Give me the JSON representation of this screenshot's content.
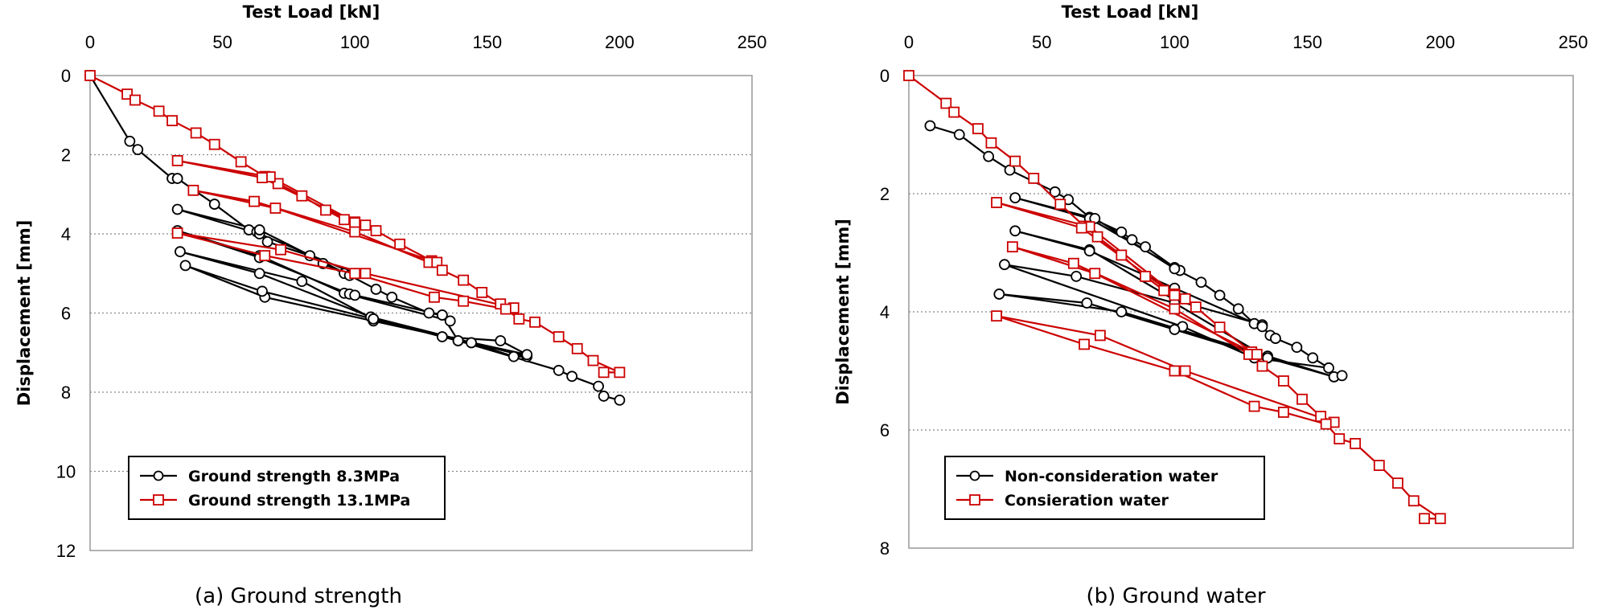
{
  "chart_data": [
    {
      "type": "line",
      "caption": "(a) Ground strength",
      "xlabel": "Test Load [kN]",
      "ylabel": "Displacement [mm]",
      "xlim": [
        0,
        250
      ],
      "ylim": [
        0,
        12
      ],
      "y_inverted": true,
      "xticks": [
        0,
        50,
        100,
        150,
        200,
        250
      ],
      "yticks": [
        0,
        2,
        4,
        6,
        8,
        10,
        12
      ],
      "grid": "horizontal dotted",
      "legend_position": "bottom-left",
      "series": [
        {
          "name": "Ground strength 8.3MPa",
          "color": "#000000",
          "marker": "circle",
          "points": [
            [
              0,
              0
            ],
            [
              15,
              1.66
            ],
            [
              18,
              1.87
            ],
            [
              31,
              2.6
            ],
            [
              33,
              2.6
            ],
            [
              47,
              3.25
            ],
            [
              60,
              3.9
            ],
            [
              63,
              3.95
            ],
            [
              67,
              4.2
            ],
            [
              83,
              4.55
            ],
            [
              88,
              4.75
            ],
            [
              96,
              5.0
            ],
            [
              100,
              5.0
            ],
            [
              64,
              4.0
            ],
            [
              33,
              3.38
            ],
            [
              64,
              3.9
            ],
            [
              98,
              5.05
            ],
            [
              108,
              5.4
            ],
            [
              114,
              5.6
            ],
            [
              128,
              6.0
            ],
            [
              133,
              6.05
            ],
            [
              136,
              6.2
            ],
            [
              96,
              5.5
            ],
            [
              64,
              4.55
            ],
            [
              33,
              3.92
            ],
            [
              64,
              4.6
            ],
            [
              98,
              5.52
            ],
            [
              100,
              5.55
            ],
            [
              133,
              6.05
            ],
            [
              139,
              6.7
            ],
            [
              144,
              6.75
            ],
            [
              160,
              7.1
            ],
            [
              165,
              7.1
            ],
            [
              106,
              6.1
            ],
            [
              64,
              5.0
            ],
            [
              34,
              4.45
            ],
            [
              80,
              5.2
            ],
            [
              107,
              6.15
            ],
            [
              133,
              6.6
            ],
            [
              155,
              6.7
            ],
            [
              165,
              7.05
            ],
            [
              107,
              6.2
            ],
            [
              66,
              5.6
            ],
            [
              36,
              4.8
            ],
            [
              65,
              5.45
            ],
            [
              107,
              6.15
            ],
            [
              139,
              6.7
            ],
            [
              177,
              7.45
            ],
            [
              182,
              7.6
            ],
            [
              192,
              7.85
            ],
            [
              194,
              8.1
            ],
            [
              200,
              8.2
            ]
          ]
        },
        {
          "name": "Ground strength 13.1MPa",
          "color": "#cc0000",
          "marker": "square",
          "points": [
            [
              0,
              0
            ],
            [
              14,
              0.47
            ],
            [
              17,
              0.62
            ],
            [
              26,
              0.9
            ],
            [
              31,
              1.14
            ],
            [
              40,
              1.45
            ],
            [
              47,
              1.74
            ],
            [
              57,
              2.18
            ],
            [
              66,
              2.55
            ],
            [
              71,
              2.73
            ],
            [
              80,
              3.04
            ],
            [
              89,
              3.4
            ],
            [
              96,
              3.64
            ],
            [
              100,
              3.7
            ],
            [
              68,
              2.56
            ],
            [
              33,
              2.15
            ],
            [
              65,
              2.58
            ],
            [
              100,
              3.72
            ],
            [
              104,
              3.78
            ],
            [
              108,
              3.92
            ],
            [
              117,
              4.26
            ],
            [
              129,
              4.68
            ],
            [
              70,
              3.35
            ],
            [
              39,
              2.9
            ],
            [
              62,
              3.18
            ],
            [
              100,
              3.95
            ],
            [
              128,
              4.72
            ],
            [
              131,
              4.72
            ],
            [
              133,
              4.92
            ],
            [
              141,
              5.17
            ],
            [
              148,
              5.48
            ],
            [
              155,
              5.77
            ],
            [
              160,
              5.87
            ],
            [
              104,
              5.0
            ],
            [
              72,
              4.4
            ],
            [
              33,
              3.98
            ],
            [
              66,
              4.55
            ],
            [
              100,
              5.0
            ],
            [
              130,
              5.6
            ],
            [
              141,
              5.7
            ],
            [
              157,
              5.9
            ],
            [
              162,
              6.15
            ],
            [
              168,
              6.23
            ],
            [
              177,
              6.6
            ],
            [
              184,
              6.9
            ],
            [
              190,
              7.2
            ],
            [
              200,
              7.5
            ],
            [
              194,
              7.5
            ]
          ]
        }
      ]
    },
    {
      "type": "line",
      "caption": "(b) Ground water",
      "xlabel": "Test Load [kN]",
      "ylabel": "Displacement [mm]",
      "xlim": [
        0,
        250
      ],
      "ylim": [
        0,
        8
      ],
      "y_inverted": true,
      "xticks": [
        0,
        50,
        100,
        150,
        200,
        250
      ],
      "yticks": [
        0,
        2,
        4,
        6,
        8
      ],
      "grid": "horizontal dotted",
      "legend_position": "bottom-left",
      "series": [
        {
          "name": "Non-consideration water",
          "color": "#000000",
          "marker": "circle",
          "points": [
            [
              8,
              0.85
            ],
            [
              19,
              1.0
            ],
            [
              30,
              1.37
            ],
            [
              38,
              1.6
            ],
            [
              55,
              1.97
            ],
            [
              60,
              2.1
            ],
            [
              68,
              2.4
            ],
            [
              80,
              2.65
            ],
            [
              84,
              2.78
            ],
            [
              89,
              2.9
            ],
            [
              100,
              3.25
            ],
            [
              102,
              3.3
            ],
            [
              68,
              2.42
            ],
            [
              40,
              2.07
            ],
            [
              70,
              2.42
            ],
            [
              100,
              3.27
            ],
            [
              110,
              3.5
            ],
            [
              117,
              3.72
            ],
            [
              124,
              3.95
            ],
            [
              130,
              4.2
            ],
            [
              133,
              4.22
            ],
            [
              100,
              3.8
            ],
            [
              68,
              2.95
            ],
            [
              40,
              2.63
            ],
            [
              68,
              2.97
            ],
            [
              100,
              3.6
            ],
            [
              133,
              4.25
            ],
            [
              136,
              4.4
            ],
            [
              138,
              4.45
            ],
            [
              146,
              4.6
            ],
            [
              152,
              4.78
            ],
            [
              158,
              4.95
            ],
            [
              130,
              4.78
            ],
            [
              103,
              4.25
            ],
            [
              36,
              3.2
            ],
            [
              63,
              3.4
            ],
            [
              100,
              3.85
            ],
            [
              135,
              4.78
            ],
            [
              160,
              5.1
            ],
            [
              135,
              4.75
            ],
            [
              80,
              4.0
            ],
            [
              34,
              3.7
            ],
            [
              67,
              3.85
            ],
            [
              100,
              4.3
            ],
            [
              135,
              4.78
            ],
            [
              160,
              5.1
            ],
            [
              163,
              5.08
            ]
          ]
        },
        {
          "name": "Consieration water",
          "color": "#cc0000",
          "marker": "square",
          "points": [
            [
              0,
              0
            ],
            [
              14,
              0.47
            ],
            [
              17,
              0.62
            ],
            [
              26,
              0.9
            ],
            [
              31,
              1.14
            ],
            [
              40,
              1.45
            ],
            [
              47,
              1.74
            ],
            [
              57,
              2.18
            ],
            [
              66,
              2.55
            ],
            [
              71,
              2.73
            ],
            [
              80,
              3.04
            ],
            [
              89,
              3.4
            ],
            [
              96,
              3.64
            ],
            [
              100,
              3.7
            ],
            [
              68,
              2.56
            ],
            [
              33,
              2.15
            ],
            [
              65,
              2.58
            ],
            [
              100,
              3.72
            ],
            [
              104,
              3.78
            ],
            [
              108,
              3.92
            ],
            [
              117,
              4.26
            ],
            [
              129,
              4.68
            ],
            [
              70,
              3.35
            ],
            [
              39,
              2.9
            ],
            [
              62,
              3.18
            ],
            [
              100,
              3.95
            ],
            [
              128,
              4.72
            ],
            [
              131,
              4.72
            ],
            [
              133,
              4.92
            ],
            [
              141,
              5.17
            ],
            [
              148,
              5.48
            ],
            [
              155,
              5.77
            ],
            [
              160,
              5.87
            ],
            [
              104,
              5.0
            ],
            [
              72,
              4.4
            ],
            [
              33,
              4.07
            ],
            [
              66,
              4.55
            ],
            [
              100,
              5.0
            ],
            [
              130,
              5.6
            ],
            [
              141,
              5.7
            ],
            [
              157,
              5.9
            ],
            [
              162,
              6.15
            ],
            [
              168,
              6.23
            ],
            [
              177,
              6.6
            ],
            [
              184,
              6.9
            ],
            [
              190,
              7.2
            ],
            [
              200,
              7.5
            ],
            [
              194,
              7.5
            ]
          ]
        }
      ]
    }
  ]
}
